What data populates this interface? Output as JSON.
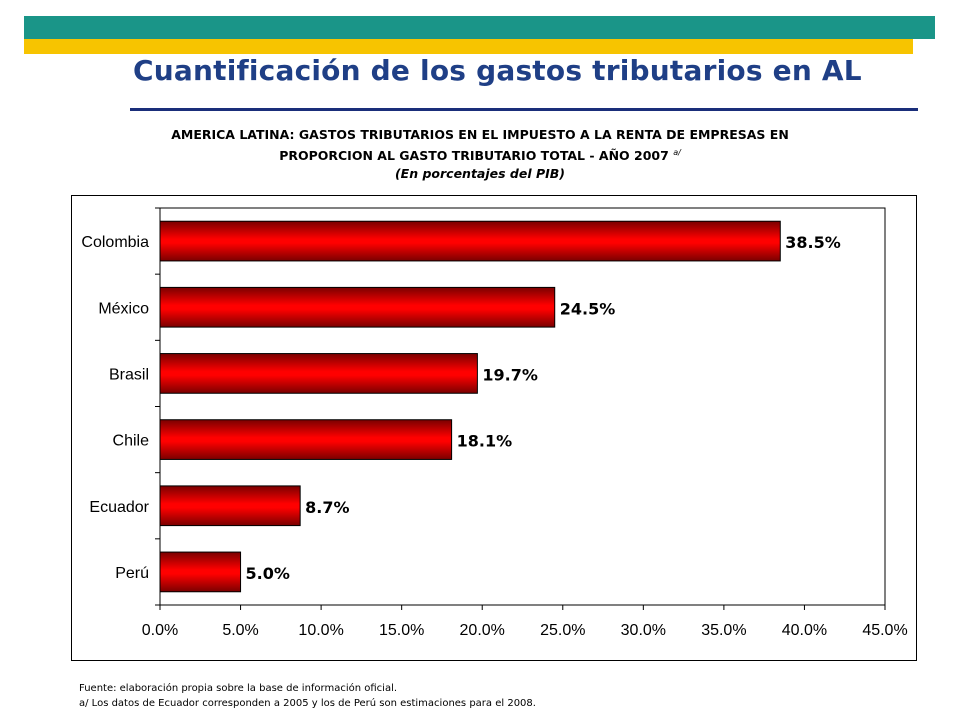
{
  "slide": {
    "title": "Cuantificación de los gastos tributarios en AL",
    "colors": {
      "teal_band": "#1a9588",
      "yellow_band": "#f7c400",
      "title": "#1f3f86",
      "rule": "#1a2e7a"
    }
  },
  "chart_heading": {
    "line1": "AMERICA LATINA: GASTOS TRIBUTARIOS EN EL IMPUESTO A LA RENTA DE EMPRESAS EN",
    "line2": "PROPORCION AL GASTO TRIBUTARIO TOTAL - AÑO 2007",
    "line2_sup": "a/",
    "line3": "(En porcentajes del PIB)"
  },
  "chart_data": {
    "type": "bar",
    "orientation": "horizontal",
    "categories": [
      "Colombia",
      "México",
      "Brasil",
      "Chile",
      "Ecuador",
      "Perú"
    ],
    "values": [
      38.5,
      24.5,
      19.7,
      18.1,
      8.7,
      5.0
    ],
    "data_labels": [
      "38.5%",
      "24.5%",
      "19.7%",
      "18.1%",
      "8.7%",
      "5.0%"
    ],
    "xlim": [
      0,
      45
    ],
    "x_ticks": [
      0,
      5,
      10,
      15,
      20,
      25,
      30,
      35,
      40,
      45
    ],
    "x_tick_labels": [
      "0.0%",
      "5.0%",
      "10.0%",
      "15.0%",
      "20.0%",
      "25.0%",
      "30.0%",
      "35.0%",
      "40.0%",
      "45.0%"
    ],
    "grid": false,
    "legend": false,
    "bar_color": "#ff0000"
  },
  "footnotes": {
    "source": "Fuente: elaboración propia sobre la base de información oficial.",
    "note_a": "a/ Los datos de Ecuador corresponden a 2005 y los de Perú son estimaciones para el 2008."
  }
}
